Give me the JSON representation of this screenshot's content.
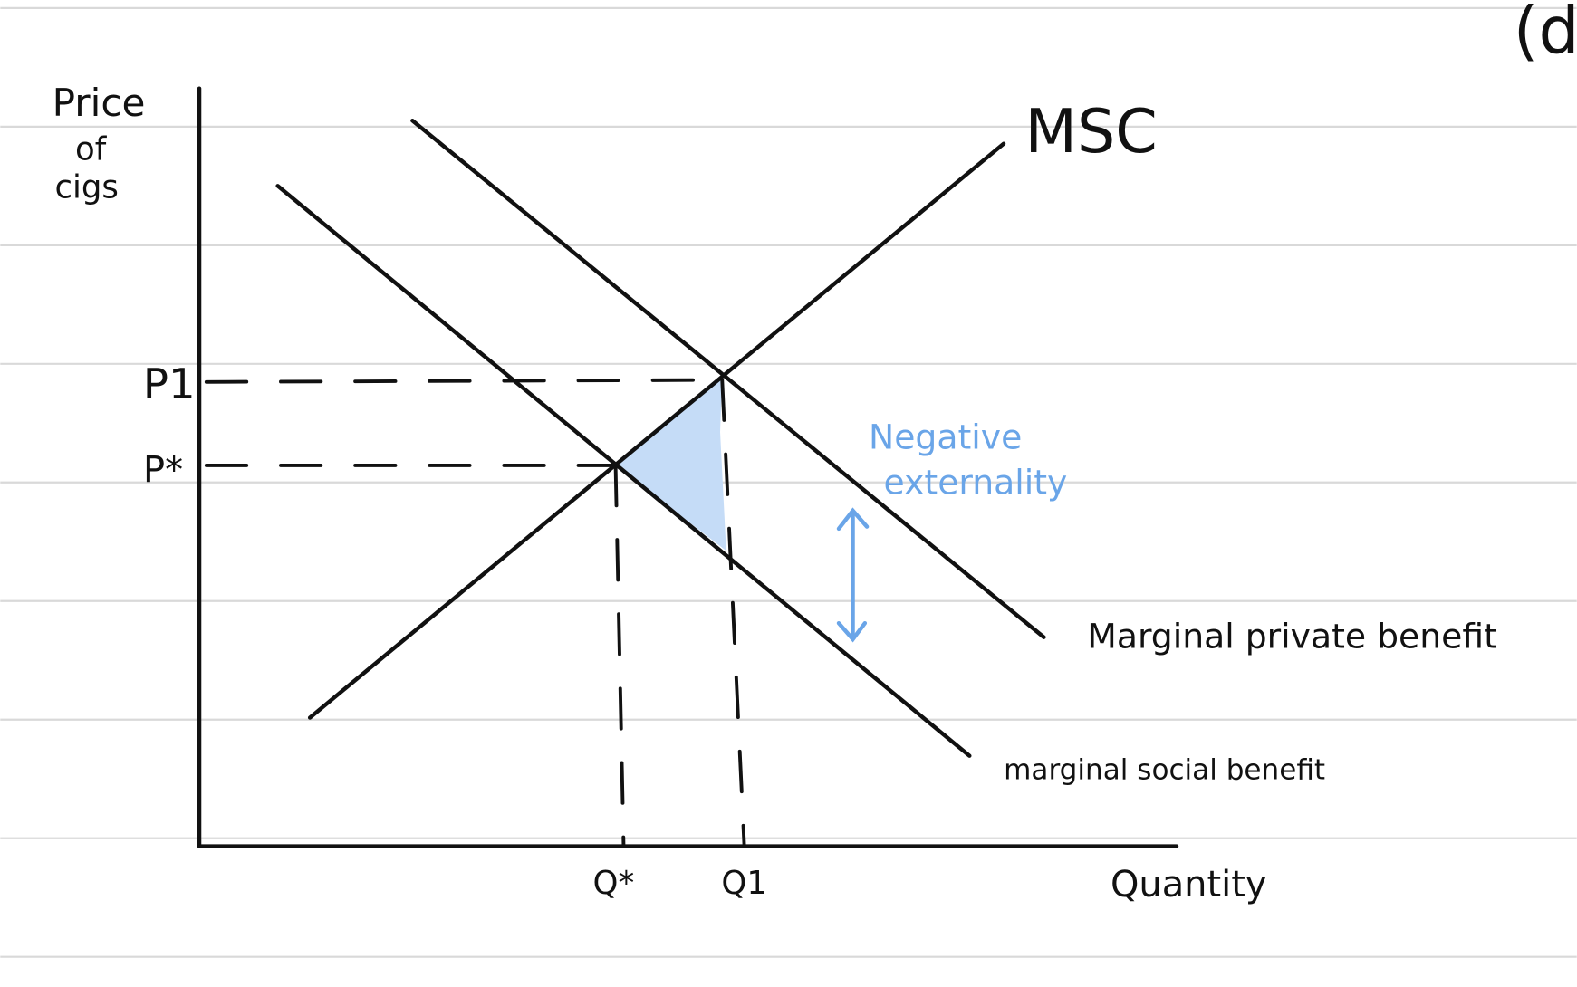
{
  "corner_mark": "(d",
  "axes": {
    "y_label": [
      "Price",
      "of",
      "cigs"
    ],
    "x_label": "Quantity"
  },
  "price_labels": [
    "P1",
    "P*"
  ],
  "quantity_labels": [
    "Q*",
    "Q1"
  ],
  "curves": {
    "msc": "MSC",
    "mpb": "Marginal private benefit",
    "msb": "marginal social benefit"
  },
  "annotation": [
    "Negative",
    "externality"
  ]
}
